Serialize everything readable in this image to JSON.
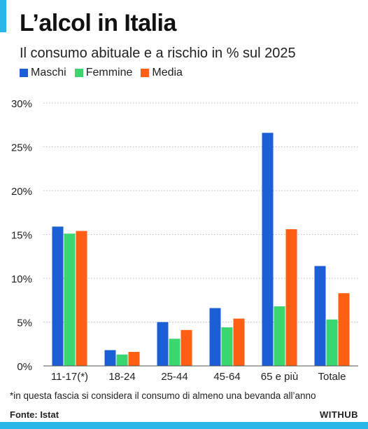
{
  "header": {
    "title": "L’alcol in Italia",
    "subtitle": "Il consumo abituale e a rischio in % sul 2025"
  },
  "legend": [
    {
      "label": "Maschi",
      "color": "#1a5fd6"
    },
    {
      "label": "Femmine",
      "color": "#3ad66f"
    },
    {
      "label": "Media",
      "color": "#ff5f12"
    }
  ],
  "chart_data": {
    "type": "bar",
    "categories": [
      "11-17(*)",
      "18-24",
      "25-44",
      "45-64",
      "65 e più",
      "Totale"
    ],
    "series": [
      {
        "name": "Maschi",
        "color": "#1a5fd6",
        "values": [
          15.9,
          1.8,
          5.0,
          6.6,
          26.6,
          11.4
        ]
      },
      {
        "name": "Femmine",
        "color": "#3ad66f",
        "values": [
          15.1,
          1.3,
          3.1,
          4.4,
          6.8,
          5.3
        ]
      },
      {
        "name": "Media",
        "color": "#ff5f12",
        "values": [
          15.4,
          1.6,
          4.1,
          5.4,
          15.6,
          8.3
        ]
      }
    ],
    "ylim": [
      0,
      30
    ],
    "yticks": [
      0,
      5,
      10,
      15,
      20,
      25,
      30
    ],
    "ytick_labels": [
      "0%",
      "5%",
      "10%",
      "15%",
      "20%",
      "25%",
      "30%"
    ],
    "grid": "horizontal dotted"
  },
  "footer": {
    "footnote": "*in questa fascia si considera il consumo di almeno una bevanda all’anno",
    "source": "Fonte: Istat",
    "brand": "WITHUB"
  }
}
